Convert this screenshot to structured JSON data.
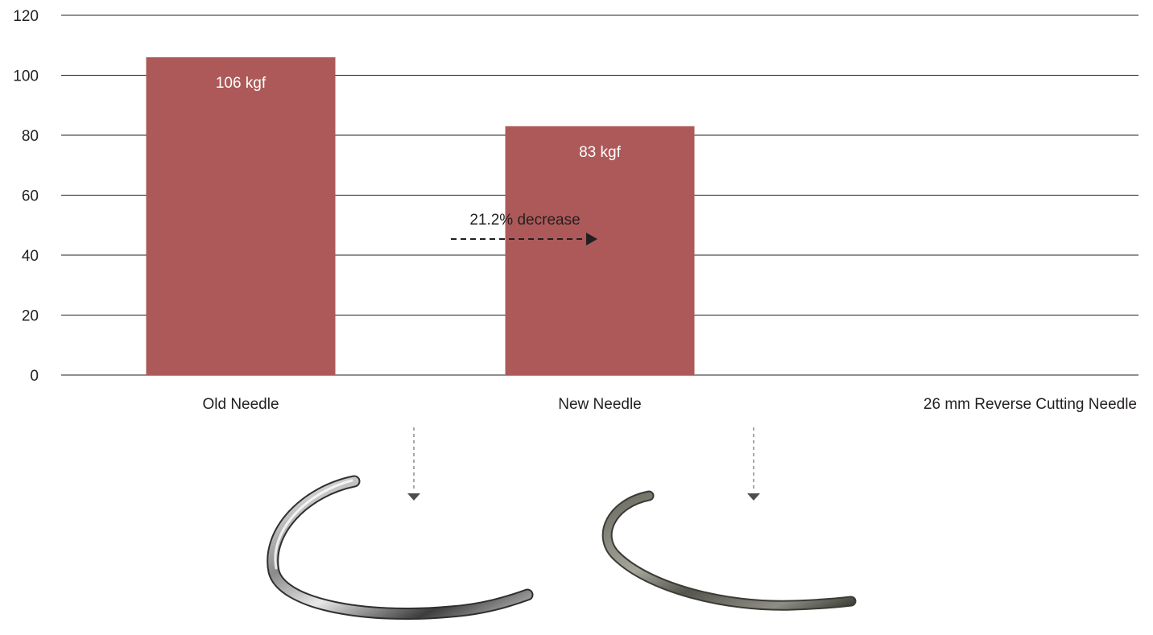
{
  "chart_data": {
    "type": "bar",
    "categories": [
      "Old Needle",
      "New Needle",
      "26 mm Reverse Cutting Needle"
    ],
    "values": [
      106,
      83,
      null
    ],
    "data_labels": [
      "106 kgf",
      "83 kgf",
      ""
    ],
    "ylim": [
      0,
      120
    ],
    "yticks": [
      0,
      20,
      40,
      60,
      80,
      100,
      120
    ],
    "grid": true,
    "bar_color": "#ad5959",
    "annotation": "21.2% decrease"
  },
  "images": [
    {
      "name": "old-needle-photo",
      "style": "silver"
    },
    {
      "name": "new-needle-photo",
      "style": "dark"
    }
  ]
}
